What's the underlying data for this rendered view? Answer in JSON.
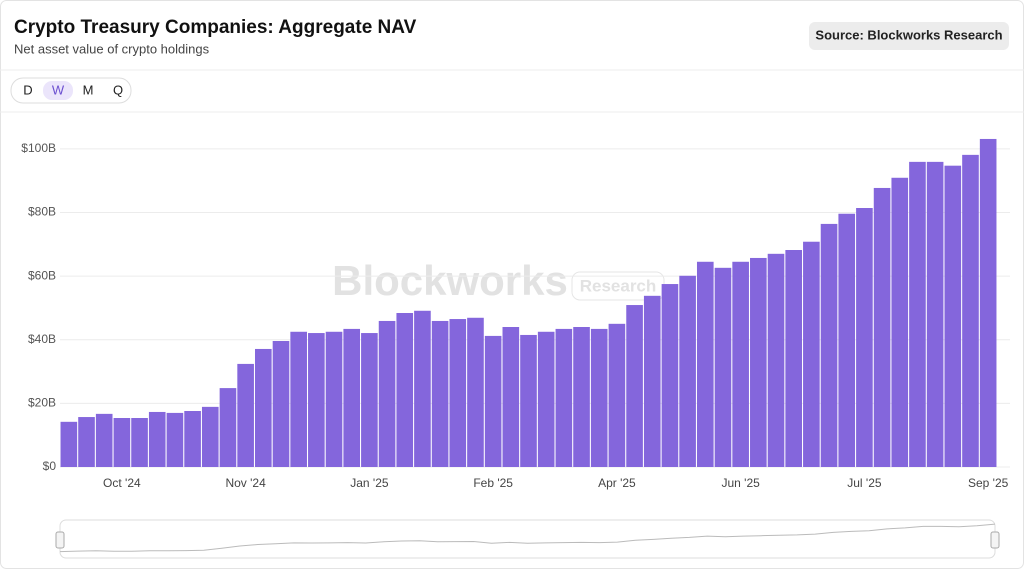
{
  "header": {
    "title": "Crypto Treasury Companies: Aggregate NAV",
    "subtitle": "Net asset value of crypto holdings",
    "source": "Source: Blockworks Research"
  },
  "controls": {
    "options": [
      "D",
      "W",
      "M",
      "Q"
    ],
    "selected": "W"
  },
  "watermark": {
    "brand": "Blockworks",
    "tag": "Research"
  },
  "chart_data": {
    "type": "bar",
    "color": "#8466dc",
    "grid": true,
    "categories": [
      null,
      null,
      null,
      "Oct '24",
      null,
      null,
      null,
      null,
      null,
      null,
      "Nov '24",
      null,
      null,
      null,
      null,
      null,
      null,
      "Jan '25",
      null,
      null,
      null,
      null,
      null,
      null,
      "Feb '25",
      null,
      null,
      null,
      null,
      null,
      null,
      "Apr '25",
      null,
      null,
      null,
      null,
      null,
      null,
      "Jun '25",
      null,
      null,
      null,
      null,
      null,
      null,
      "Jul '25",
      null,
      null,
      null,
      null,
      null,
      null,
      "Sep '25"
    ],
    "values": [
      14.2,
      15.7,
      16.7,
      15.4,
      15.4,
      17.3,
      17.0,
      17.6,
      18.9,
      24.8,
      32.4,
      37.1,
      39.6,
      42.5,
      42.1,
      42.5,
      43.4,
      42.1,
      45.9,
      48.4,
      49.1,
      45.9,
      46.5,
      46.9,
      41.2,
      44.0,
      41.5,
      42.5,
      43.4,
      44.0,
      43.4,
      45.0,
      50.9,
      53.8,
      57.5,
      60.1,
      64.5,
      62.6,
      64.5,
      65.7,
      67.0,
      68.2,
      70.8,
      76.4,
      79.6,
      81.4,
      87.7,
      90.9,
      95.9,
      95.9,
      94.7,
      98.1,
      103.1
    ],
    "ylim": [
      0,
      110
    ],
    "yticks": [
      {
        "value": 0,
        "label": "$0"
      },
      {
        "value": 20,
        "label": "$20B"
      },
      {
        "value": 40,
        "label": "$40B"
      },
      {
        "value": 60,
        "label": "$60B"
      },
      {
        "value": 80,
        "label": "$80B"
      },
      {
        "value": 100,
        "label": "$100B"
      }
    ]
  }
}
